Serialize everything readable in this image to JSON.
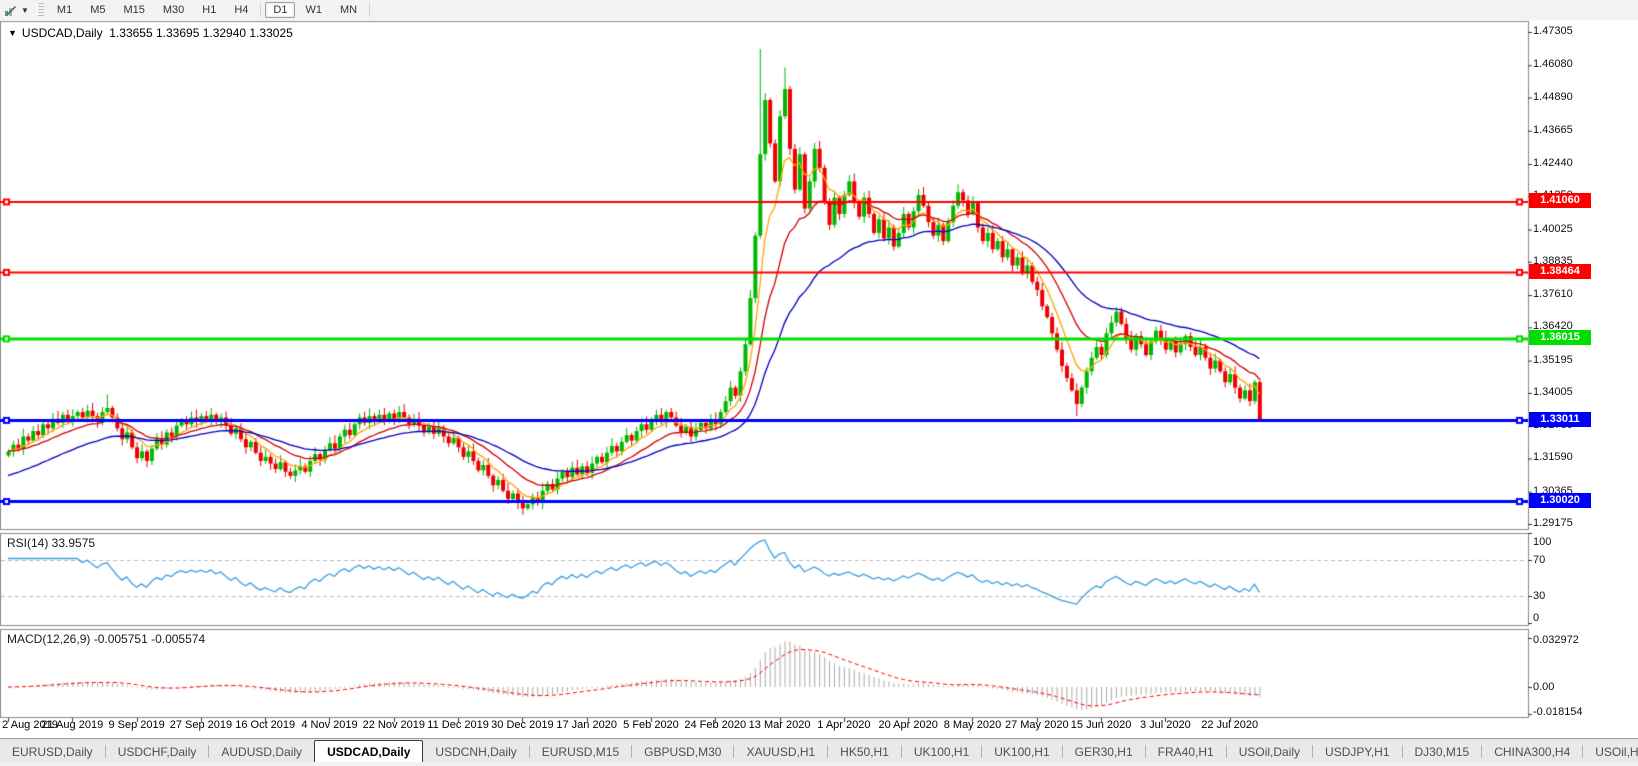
{
  "toolbar": {
    "timeframes": [
      "M1",
      "M5",
      "M15",
      "M30",
      "H1",
      "H4",
      "D1",
      "W1",
      "MN"
    ],
    "active_timeframe": "D1"
  },
  "chart_header": {
    "symbol": "USDCAD,Daily",
    "ohlc_text": "1.33655 1.33695 1.32940 1.33025"
  },
  "tabs": {
    "items": [
      "EURUSD,Daily",
      "USDCHF,Daily",
      "AUDUSD,Daily",
      "USDCAD,Daily",
      "USDCNH,Daily",
      "EURUSD,M15",
      "GBPUSD,M30",
      "XAUUSD,H1",
      "HK50,H1",
      "UK100,H1",
      "UK100,H1",
      "GER30,H1",
      "FRA40,H1",
      "USOil,Daily",
      "USDJPY,H1",
      "DJ30,M15",
      "CHINA300,H4",
      "USOil,H4"
    ],
    "active_index": 3,
    "scroll_left_arrow": "◄",
    "scroll_right_arrow": "►"
  },
  "chart_data": {
    "type": "candlestick",
    "title": "USDCAD,Daily",
    "ohlc_readout": {
      "open": 1.33655,
      "high": 1.33695,
      "low": 1.3294,
      "close": 1.33025
    },
    "price_axis_ticks": [
      "1.47305",
      "1.46080",
      "1.44890",
      "1.43665",
      "1.42440",
      "1.41250",
      "1.40025",
      "1.38835",
      "1.37610",
      "1.36420",
      "1.35195",
      "1.34005",
      "1.32780",
      "1.31590",
      "1.30365",
      "1.29175"
    ],
    "ylim": [
      1.2896,
      1.4771
    ],
    "date_labels": [
      "2 Aug 2019",
      "21 Aug 2019",
      "9 Sep 2019",
      "27 Sep 2019",
      "16 Oct 2019",
      "4 Nov 2019",
      "22 Nov 2019",
      "11 Dec 2019",
      "30 Dec 2019",
      "17 Jan 2020",
      "5 Feb 2020",
      "24 Feb 2020",
      "13 Mar 2020",
      "1 Apr 2020",
      "20 Apr 2020",
      "8 May 2020",
      "27 May 2020",
      "15 Jun 2020",
      "3 Jul 2020",
      "22 Jul 2020"
    ],
    "bars_per_date_label": 13,
    "closes": [
      1.3185,
      1.321,
      1.3195,
      1.324,
      1.3225,
      1.326,
      1.3245,
      1.3285,
      1.327,
      1.3305,
      1.329,
      1.332,
      1.33,
      1.3315,
      1.333,
      1.331,
      1.3335,
      1.3315,
      1.3295,
      1.333,
      1.3345,
      1.331,
      1.327,
      1.323,
      1.3255,
      1.32,
      1.316,
      1.3185,
      1.315,
      1.3195,
      1.323,
      1.321,
      1.3255,
      1.324,
      1.328,
      1.33,
      1.3285,
      1.331,
      1.3295,
      1.3315,
      1.33,
      1.332,
      1.3295,
      1.331,
      1.328,
      1.325,
      1.327,
      1.323,
      1.32,
      1.322,
      1.318,
      1.315,
      1.3165,
      1.314,
      1.312,
      1.3145,
      1.311,
      1.3095,
      1.3115,
      1.313,
      1.311,
      1.315,
      1.3175,
      1.3155,
      1.319,
      1.3215,
      1.3195,
      1.324,
      1.3265,
      1.3245,
      1.3285,
      1.331,
      1.329,
      1.3315,
      1.3295,
      1.332,
      1.33,
      1.3325,
      1.3305,
      1.333,
      1.331,
      1.3285,
      1.3305,
      1.328,
      1.3255,
      1.3275,
      1.325,
      1.327,
      1.324,
      1.3215,
      1.3235,
      1.32,
      1.3165,
      1.3185,
      1.315,
      1.3115,
      1.3135,
      1.3095,
      1.306,
      1.308,
      1.304,
      1.301,
      1.303,
      1.2995,
      1.2975,
      1.299,
      1.3015,
      1.2995,
      1.304,
      1.3065,
      1.3045,
      1.3085,
      1.311,
      1.309,
      1.3125,
      1.31,
      1.313,
      1.3105,
      1.314,
      1.3165,
      1.3145,
      1.318,
      1.3205,
      1.3185,
      1.322,
      1.3245,
      1.3225,
      1.326,
      1.3285,
      1.3265,
      1.33,
      1.332,
      1.3295,
      1.333,
      1.331,
      1.328,
      1.3255,
      1.3275,
      1.324,
      1.3265,
      1.329,
      1.327,
      1.33,
      1.3285,
      1.333,
      1.337,
      1.342,
      1.339,
      1.348,
      1.358,
      1.375,
      1.398,
      1.428,
      1.448,
      1.432,
      1.418,
      1.442,
      1.452,
      1.43,
      1.415,
      1.428,
      1.408,
      1.418,
      1.43,
      1.423,
      1.41,
      1.402,
      1.412,
      1.406,
      1.413,
      1.418,
      1.41,
      1.405,
      1.412,
      1.406,
      1.399,
      1.404,
      1.397,
      1.401,
      1.394,
      1.399,
      1.406,
      1.401,
      1.407,
      1.413,
      1.409,
      1.403,
      1.398,
      1.402,
      1.396,
      1.403,
      1.409,
      1.414,
      1.411,
      1.406,
      1.41,
      1.401,
      1.396,
      1.399,
      1.393,
      1.396,
      1.39,
      1.393,
      1.387,
      1.39,
      1.384,
      1.387,
      1.381,
      1.378,
      1.372,
      1.368,
      1.362,
      1.356,
      1.35,
      1.3455,
      1.341,
      1.336,
      1.342,
      1.348,
      1.353,
      1.357,
      1.354,
      1.362,
      1.366,
      1.37,
      1.3655,
      1.36,
      1.356,
      1.361,
      1.358,
      1.354,
      1.359,
      1.363,
      1.36,
      1.356,
      1.359,
      1.355,
      1.358,
      1.361,
      1.357,
      1.354,
      1.357,
      1.353,
      1.349,
      1.352,
      1.348,
      1.344,
      1.347,
      1.342,
      1.338,
      1.341,
      1.337,
      1.344,
      1.3303
    ],
    "wick_overrides": {
      "high": {
        "20": 1.3395,
        "152": 1.4668,
        "157": 1.46,
        "224": 1.3715
      },
      "low": {
        "104": 1.2952,
        "216": 1.3315,
        "253": 1.3294
      }
    },
    "candle_up_color": "#00b800",
    "candle_down_color": "#ee0000",
    "horizontal_lines": [
      {
        "price": 1.4106,
        "label": "1.41060",
        "color": "#ff0000",
        "width": 2
      },
      {
        "price": 1.38464,
        "label": "1.38464",
        "color": "#ff0000",
        "width": 2
      },
      {
        "price": 1.36015,
        "label": "1.36015",
        "color": "#00dd00",
        "width": 3
      },
      {
        "price": 1.33011,
        "label": "1.33011",
        "color": "#0000ff",
        "width": 3
      },
      {
        "price": 1.3002,
        "label": "1.30020",
        "color": "#0000ff",
        "width": 3
      }
    ],
    "moving_averages": [
      {
        "period": 7,
        "color": "#ffa500",
        "seed": null
      },
      {
        "period": 16,
        "color": "#d40000",
        "seed": 1.3185
      },
      {
        "period": 34,
        "color": "#0000c0",
        "seed": 1.309
      }
    ],
    "rsi": {
      "label": "RSI(14) 33.9575",
      "period": 14,
      "value": 33.9575,
      "levels": [
        70,
        30
      ],
      "axis_labels": [
        "100",
        "70",
        "30",
        "0"
      ],
      "line_color": "#3d9fe0",
      "level_line_color": "#bbbbbb"
    },
    "macd": {
      "label": "MACD(12,26,9) -0.005751 -0.005574",
      "fast": 12,
      "slow": 26,
      "signal_period": 9,
      "values": [
        -0.005751,
        -0.005574
      ],
      "axis_labels": [
        "0.032972",
        "0.00",
        "-0.018154"
      ],
      "histogram_color": "#ababab",
      "signal_color": "#ff0000"
    }
  }
}
